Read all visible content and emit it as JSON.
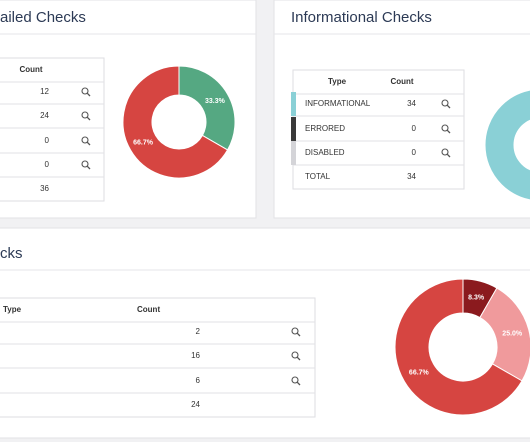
{
  "panels": [
    {
      "title": "ailed Checks",
      "table": {
        "header": {
          "count": "Count"
        },
        "rows": [
          {
            "count": 12
          },
          {
            "count": 24
          },
          {
            "count": 0
          },
          {
            "count": 0
          }
        ],
        "total": {
          "count": 36
        }
      },
      "donut": [
        {
          "value": 33.3,
          "label": "33.3%",
          "color": "#55a882"
        },
        {
          "value": 66.7,
          "label": "66.7%",
          "color": "#d64541"
        }
      ]
    },
    {
      "title": "Informational Checks",
      "table": {
        "header": {
          "type": "Type",
          "count": "Count"
        },
        "rows": [
          {
            "type": "INFORMATIONAL",
            "count": 34,
            "color": "#8ad0d6"
          },
          {
            "type": "ERRORED",
            "count": 0,
            "color": "#3a3a3a"
          },
          {
            "type": "DISABLED",
            "count": 0,
            "color": "#d4d4d8"
          }
        ],
        "total": {
          "type": "TOTAL",
          "count": 34
        }
      },
      "donut": [
        {
          "value": 100,
          "color": "#8ad0d6"
        }
      ]
    },
    {
      "title": "cks",
      "table": {
        "header": {
          "type": "Type",
          "count": "Count"
        },
        "rows": [
          {
            "count": 2
          },
          {
            "count": 16
          },
          {
            "count": 6
          }
        ],
        "total": {
          "count": 24
        }
      },
      "donut": [
        {
          "value": 8.3,
          "label": "8.3%",
          "color": "#8b1a1e"
        },
        {
          "value": 25.0,
          "label": "25.0%",
          "color": "#f09a9c"
        },
        {
          "value": 66.7,
          "label": "66.7%",
          "color": "#d64541"
        }
      ]
    }
  ]
}
